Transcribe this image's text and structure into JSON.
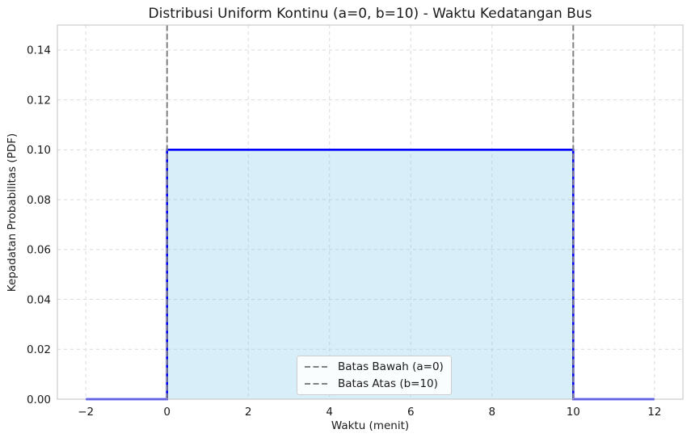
{
  "figure": {
    "background": "#ffffff"
  },
  "chart_data": {
    "type": "area",
    "title": "Distribusi Uniform Kontinu (a=0, b=10) - Waktu Kedatangan Bus",
    "xlabel": "Waktu (menit)",
    "ylabel": "Kepadatan Probabilitas (PDF)",
    "xlim": [
      -2.7,
      12.7
    ],
    "ylim": [
      0,
      0.15
    ],
    "x_ticks": [
      -2,
      0,
      2,
      4,
      6,
      8,
      10,
      12
    ],
    "x_tick_labels": [
      "−2",
      "0",
      "2",
      "4",
      "6",
      "8",
      "10",
      "12"
    ],
    "y_ticks": [
      0,
      0.02,
      0.04,
      0.06,
      0.08,
      0.1,
      0.12,
      0.14
    ],
    "y_tick_labels": [
      "0.00",
      "0.02",
      "0.04",
      "0.06",
      "0.08",
      "0.10",
      "0.12",
      "0.14"
    ],
    "grid": true,
    "grid_color": "#d9d9d9",
    "spine_color": "#c0c0c0",
    "tick_label_color": "#1a1a1a",
    "series": [
      {
        "name": "PDF",
        "type": "step-line",
        "x": [
          -2,
          0,
          0,
          10,
          10,
          12
        ],
        "y": [
          0,
          0,
          0.1,
          0.1,
          0,
          0
        ],
        "color": "#0000ff",
        "linewidth": 2.6
      }
    ],
    "fill_region": {
      "x0": 0,
      "x1": 10,
      "y0": 0,
      "y1": 0.1,
      "color": "#87ceeb",
      "opacity": 0.32
    },
    "vlines": [
      {
        "x": 0,
        "color": "#808080",
        "style": "dashed",
        "label": "Batas Bawah (a=0)"
      },
      {
        "x": 10,
        "color": "#808080",
        "style": "dashed",
        "label": "Batas Atas (b=10)"
      }
    ],
    "legend": {
      "position": "lower center",
      "entries": [
        {
          "label": "Batas Bawah (a=0)",
          "marker_color": "#808080"
        },
        {
          "label": "Batas Atas (b=10)",
          "marker_color": "#808080"
        }
      ]
    }
  }
}
